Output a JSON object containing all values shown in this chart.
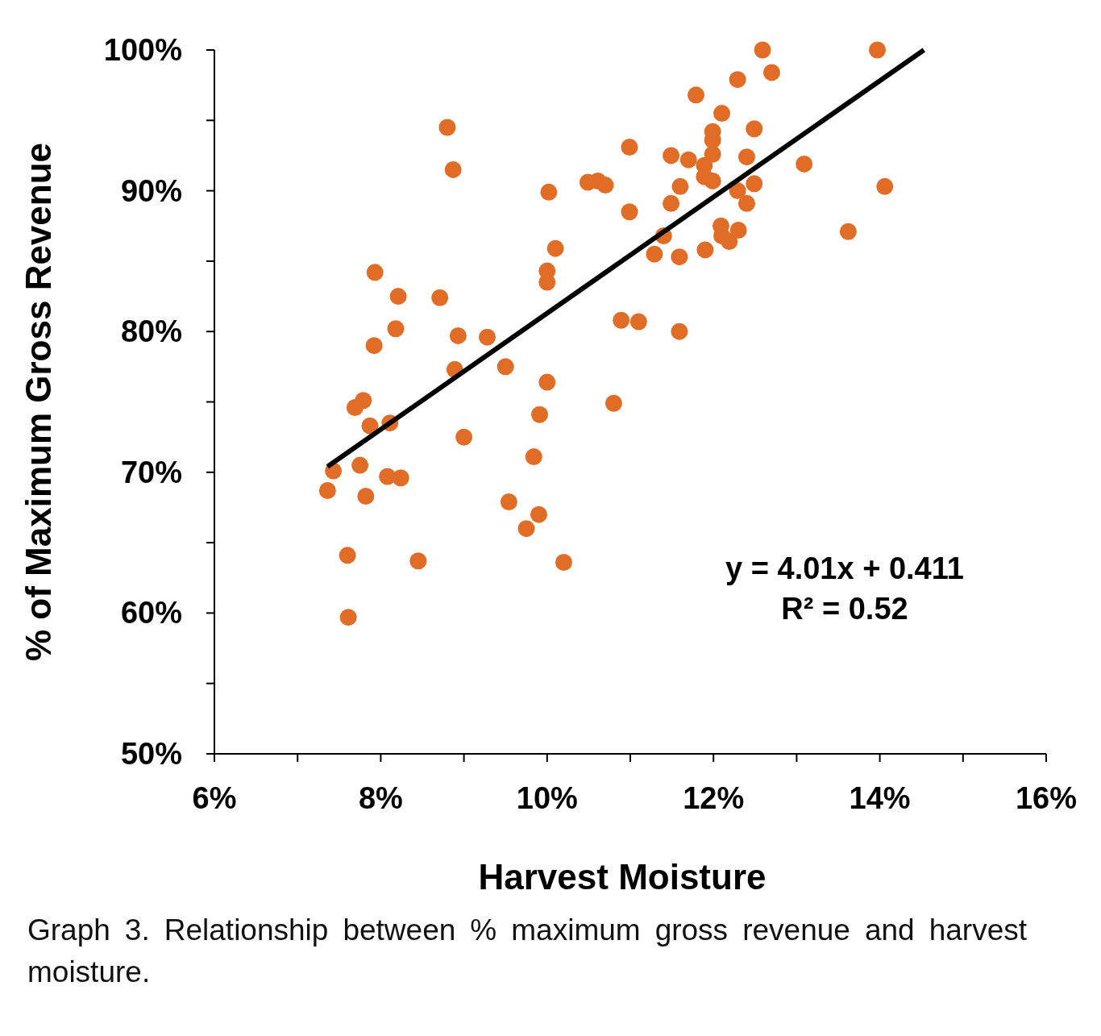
{
  "chart_data": {
    "type": "scatter",
    "xlabel": "Harvest Moisture",
    "ylabel": "% of Maximum Gross Revenue",
    "annotations": [
      "y = 4.01x + 0.411",
      "R² = 0.52",
      "Graph 3. Relationship between % maximum gross revenue and harvest moisture."
    ],
    "xlim": [
      0.06,
      0.16
    ],
    "ylim": [
      0.5,
      1.0
    ],
    "xticks": [
      {
        "value": 0.06,
        "label": "6%"
      },
      {
        "value": 0.07,
        "label": null
      },
      {
        "value": 0.08,
        "label": "8%"
      },
      {
        "value": 0.09,
        "label": null
      },
      {
        "value": 0.1,
        "label": "10%"
      },
      {
        "value": 0.11,
        "label": null
      },
      {
        "value": 0.12,
        "label": "12%"
      },
      {
        "value": 0.13,
        "label": null
      },
      {
        "value": 0.14,
        "label": "14%"
      },
      {
        "value": 0.15,
        "label": null
      },
      {
        "value": 0.16,
        "label": "16%"
      }
    ],
    "yticks": [
      {
        "value": 0.5,
        "label": "50%"
      },
      {
        "value": 0.55,
        "label": null
      },
      {
        "value": 0.6,
        "label": "60%"
      },
      {
        "value": 0.65,
        "label": null
      },
      {
        "value": 0.7,
        "label": "70%"
      },
      {
        "value": 0.75,
        "label": null
      },
      {
        "value": 0.8,
        "label": "80%"
      },
      {
        "value": 0.85,
        "label": null
      },
      {
        "value": 0.9,
        "label": "90%"
      },
      {
        "value": 0.95,
        "label": null
      },
      {
        "value": 1.0,
        "label": "100%"
      }
    ],
    "grid": false,
    "series": [
      {
        "marker": "circle",
        "color": "#e06c26",
        "x": [
          0.0736,
          0.0743,
          0.076,
          0.0761,
          0.0769,
          0.0779,
          0.0775,
          0.0782,
          0.0787,
          0.0792,
          0.0793,
          0.0808,
          0.0811,
          0.0818,
          0.0821,
          0.0824,
          0.0845,
          0.0871,
          0.088,
          0.0887,
          0.0889,
          0.0893,
          0.09,
          0.0928,
          0.095,
          0.0954,
          0.0975,
          0.0984,
          0.099,
          0.0991,
          0.1,
          0.1,
          0.1,
          0.1002,
          0.101,
          0.102,
          0.1049,
          0.1061,
          0.107,
          0.108,
          0.1089,
          0.1099,
          0.1099,
          0.111,
          0.1129,
          0.114,
          0.1149,
          0.1149,
          0.1159,
          0.1159,
          0.116,
          0.117,
          0.1179,
          0.1189,
          0.1189,
          0.119,
          0.1199,
          0.1199,
          0.1199,
          0.1199,
          0.1209,
          0.121,
          0.121,
          0.1219,
          0.1229,
          0.1229,
          0.123,
          0.124,
          0.124,
          0.1249,
          0.1249,
          0.1259,
          0.127,
          0.1309,
          0.1362,
          0.1397,
          0.1406
        ],
        "values": [
          0.687,
          0.701,
          0.641,
          0.597,
          0.746,
          0.751,
          0.705,
          0.683,
          0.733,
          0.79,
          0.842,
          0.697,
          0.735,
          0.802,
          0.825,
          0.696,
          0.637,
          0.824,
          0.945,
          0.915,
          0.773,
          0.797,
          0.725,
          0.796,
          0.775,
          0.679,
          0.66,
          0.711,
          0.67,
          0.741,
          0.764,
          0.835,
          0.843,
          0.899,
          0.859,
          0.636,
          0.906,
          0.907,
          0.904,
          0.749,
          0.808,
          0.931,
          0.885,
          0.807,
          0.855,
          0.868,
          0.925,
          0.891,
          0.8,
          0.853,
          0.903,
          0.922,
          0.968,
          0.918,
          0.91,
          0.858,
          0.942,
          0.936,
          0.926,
          0.907,
          0.875,
          0.868,
          0.955,
          0.864,
          0.979,
          0.9,
          0.872,
          0.924,
          0.891,
          0.944,
          0.905,
          1.0,
          0.984,
          0.919,
          0.871,
          1.0,
          0.903
        ]
      },
      {
        "type": "line",
        "color": "#000000",
        "x": [
          0.0736,
          0.1453
        ],
        "values": [
          0.704,
          1.0
        ]
      }
    ]
  }
}
